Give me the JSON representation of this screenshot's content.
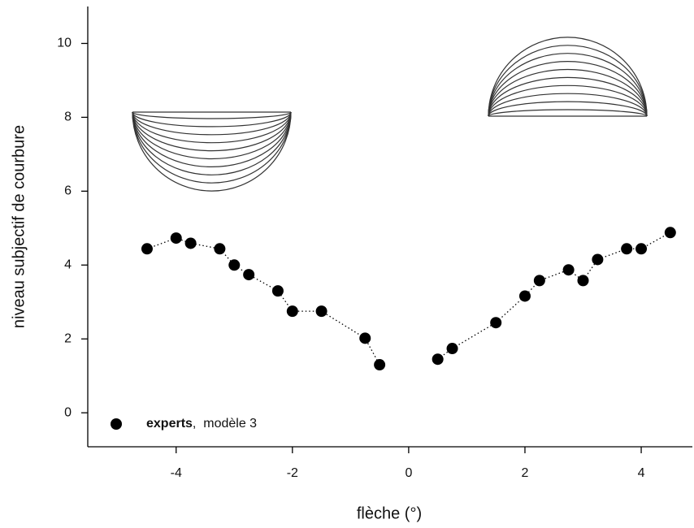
{
  "chart_data": {
    "type": "line",
    "x_label": "flèche (°)",
    "y_label": "niveau subjectif de courbure",
    "x": [
      -4.5,
      -4,
      -3.75,
      -3.25,
      -3,
      -2.75,
      -2.25,
      -2,
      -1.5,
      -0.75,
      -0.5,
      0,
      0.5,
      0.75,
      1.5,
      2,
      2.25,
      2.75,
      3,
      3.25,
      3.75,
      4,
      4.5
    ],
    "series": [
      {
        "name": "experts",
        "legend_suffix": ",  modèle 3",
        "color": "#000000",
        "values": [
          4.44,
          4.73,
          4.59,
          4.44,
          4.0,
          3.74,
          3.3,
          2.75,
          2.75,
          2.02,
          1.3,
          null,
          1.45,
          1.74,
          2.44,
          3.16,
          3.58,
          3.87,
          3.58,
          4.15,
          4.44,
          4.44,
          4.88
        ]
      }
    ],
    "xlim": [
      -5.52,
      4.88
    ],
    "xticks": [
      -4,
      -2,
      0,
      2,
      4
    ],
    "ylim": [
      -0.92,
      11
    ],
    "yticks": [
      0,
      2,
      4,
      6,
      8,
      10
    ],
    "line_style": "dotted",
    "markers": true
  }
}
